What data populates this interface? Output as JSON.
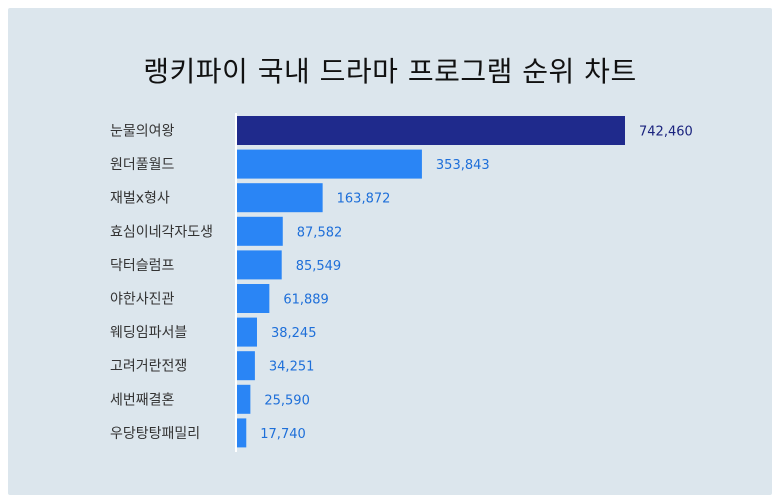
{
  "chart_data": {
    "type": "bar",
    "orientation": "horizontal",
    "title": "랭키파이 국내 드라마 프로그램 순위 차트",
    "categories": [
      "눈물의여왕",
      "원더풀월드",
      "재벌x형사",
      "효심이네각자도생",
      "닥터슬럼프",
      "야한사진관",
      "웨딩임파서블",
      "고려거란전쟁",
      "세번째결혼",
      "우당탕탕패밀리"
    ],
    "values": [
      742460,
      353843,
      163872,
      87582,
      85549,
      61889,
      38245,
      34251,
      25590,
      17740
    ],
    "value_labels": [
      "742,460",
      "353,843",
      "163,872",
      "87,582",
      "85,549",
      "61,889",
      "38,245",
      "34,251",
      "25,590",
      "17,740"
    ],
    "xlim": [
      0,
      742460
    ],
    "grid": false,
    "legend": "none",
    "colors": {
      "top": "#1f2a8c",
      "bar": "#2a85f5",
      "top_label": "#1a237e",
      "label": "#1e6fd9",
      "background": "#dce6ed"
    }
  }
}
